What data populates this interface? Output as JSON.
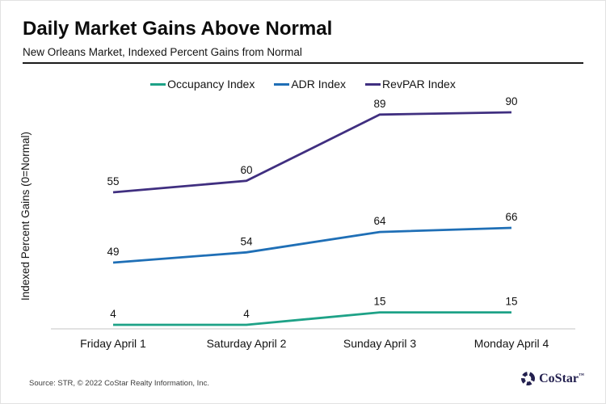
{
  "header": {
    "title": "Daily Market Gains Above Normal",
    "subtitle": "New Orleans Market, Indexed Percent Gains from Normal"
  },
  "chart_data": {
    "type": "line",
    "categories": [
      "Friday April 1",
      "Saturday April 2",
      "Sunday April 3",
      "Monday April 4"
    ],
    "series": [
      {
        "name": "Occupancy Index",
        "values": [
          4,
          4,
          15,
          15
        ],
        "color": "#1ea287"
      },
      {
        "name": "ADR Index",
        "values": [
          49,
          54,
          64,
          66
        ],
        "color": "#1f6fb6"
      },
      {
        "name": "RevPAR Index",
        "values": [
          55,
          60,
          89,
          90
        ],
        "color": "#402f80"
      }
    ],
    "title": "Daily Market Gains Above Normal",
    "subtitle": "New Orleans Market, Indexed Percent Gains from Normal",
    "xlabel": "",
    "ylabel": "Indexed Percent Gains (0=Normal)",
    "ylim": [
      0,
      100
    ],
    "grid": false,
    "legend_position": "top-center",
    "data_labels": true
  },
  "footer": {
    "source": "Source: STR, © 2022 CoStar Realty Information, Inc.",
    "logo_text": "CoStar",
    "logo_trademark": "™"
  },
  "colors": {
    "occupancy": "#1ea287",
    "adr": "#1f6fb6",
    "revpar": "#402f80",
    "baseline": "#d9d9d9",
    "text": "#111111",
    "logo_navy": "#23204f"
  }
}
